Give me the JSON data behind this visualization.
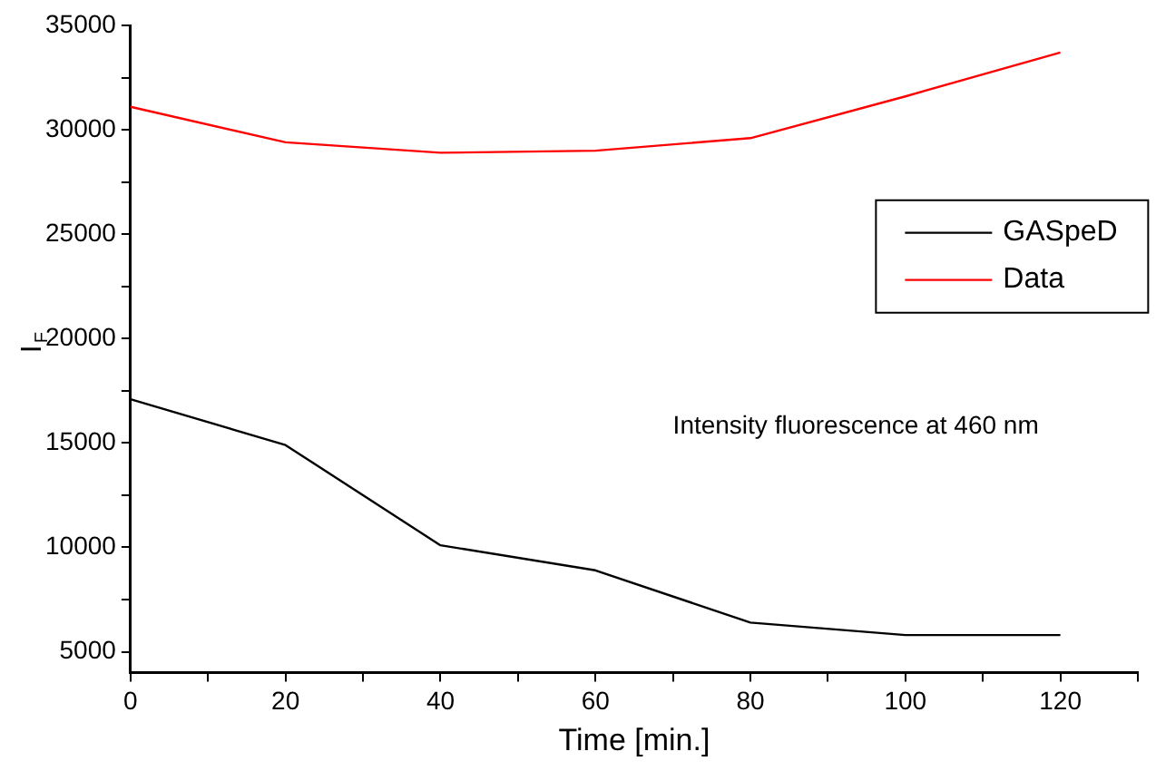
{
  "chart_data": {
    "type": "line",
    "xlabel": "Time [min.]",
    "ylabel": "I$_{F}$",
    "x": [
      0,
      20,
      40,
      60,
      80,
      100,
      120
    ],
    "series": [
      {
        "name": "GASpeD",
        "color": "#000000",
        "values": [
          17100,
          14900,
          10100,
          8900,
          6400,
          5800,
          5800
        ]
      },
      {
        "name": "Data",
        "color": "#ff0000",
        "values": [
          31100,
          29400,
          28900,
          29000,
          29600,
          31600,
          33700
        ]
      }
    ],
    "xlim": [
      0,
      130
    ],
    "xticks": [
      0,
      {
        "value": 10,
        "label": null
      },
      20,
      {
        "value": 30,
        "label": null
      },
      40,
      {
        "value": 50,
        "label": null
      },
      60,
      {
        "value": 70,
        "label": null
      },
      80,
      {
        "value": 90,
        "label": null
      },
      100,
      {
        "value": 110,
        "label": null
      },
      120,
      {
        "value": 130,
        "label": null
      }
    ],
    "ylim": [
      4000,
      35000
    ],
    "yticks": [
      5000,
      {
        "value": 7500,
        "label": null
      },
      10000,
      {
        "value": 12500,
        "label": null
      },
      15000,
      {
        "value": 17500,
        "label": null
      },
      20000,
      {
        "value": 22500,
        "label": null
      },
      25000,
      {
        "value": 27500,
        "label": null
      },
      30000,
      {
        "value": 32500,
        "label": null
      },
      35000
    ],
    "annotations": [
      "Intensity fluorescence at 460 nm"
    ],
    "grid": false,
    "legend": "right",
    "marker": "none",
    "line_style": "solid"
  }
}
